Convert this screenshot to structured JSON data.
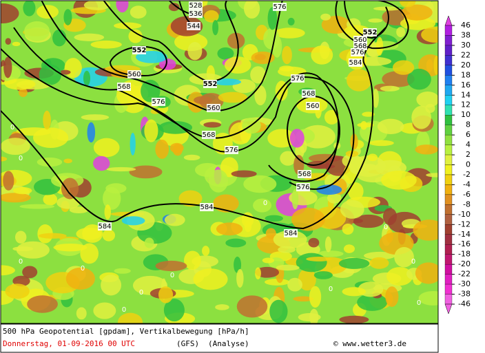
{
  "map": {
    "contour_labels": [
      "552",
      "552",
      "552",
      "560",
      "560",
      "560",
      "560",
      "568",
      "568",
      "568",
      "568",
      "568",
      "576",
      "576",
      "576",
      "576",
      "576",
      "576",
      "584",
      "584",
      "584",
      "584",
      "528",
      "536",
      "544"
    ],
    "field_labels": [
      "0",
      "0",
      "0",
      "0",
      "0",
      "0",
      "0",
      "0",
      "0",
      "0",
      "0",
      "0"
    ]
  },
  "colorbar": {
    "labels": [
      "46",
      "38",
      "30",
      "22",
      "20",
      "18",
      "16",
      "14",
      "12",
      "10",
      "8",
      "6",
      "4",
      "2",
      "0",
      "-2",
      "-4",
      "-6",
      "-8",
      "-10",
      "-12",
      "-14",
      "-16",
      "-18",
      "-20",
      "-22",
      "-30",
      "-38",
      "-46"
    ],
    "colors": [
      "#e040e0",
      "#b020e0",
      "#8020d0",
      "#6020c8",
      "#4030d0",
      "#2050e0",
      "#2080f0",
      "#20a8f0",
      "#20d0f0",
      "#30e0b0",
      "#30c040",
      "#60d040",
      "#90e040",
      "#b8f040",
      "#e0f040",
      "#f0f020",
      "#f0d010",
      "#f0b010",
      "#e09020",
      "#c07030",
      "#b06040",
      "#a04030",
      "#a03040",
      "#b02050",
      "#c01870",
      "#d010a0",
      "#e020c0",
      "#f030d0",
      "#f060e0"
    ]
  },
  "footer": {
    "line1": "500 hPa Geopotential [gpdam], Vertikalbewegung [hPa/h]",
    "date": "Donnerstag, 01-09-2016  00 UTC",
    "model": "(GFS)",
    "run": "(Analyse)",
    "source": "© www.wetter3.de"
  }
}
